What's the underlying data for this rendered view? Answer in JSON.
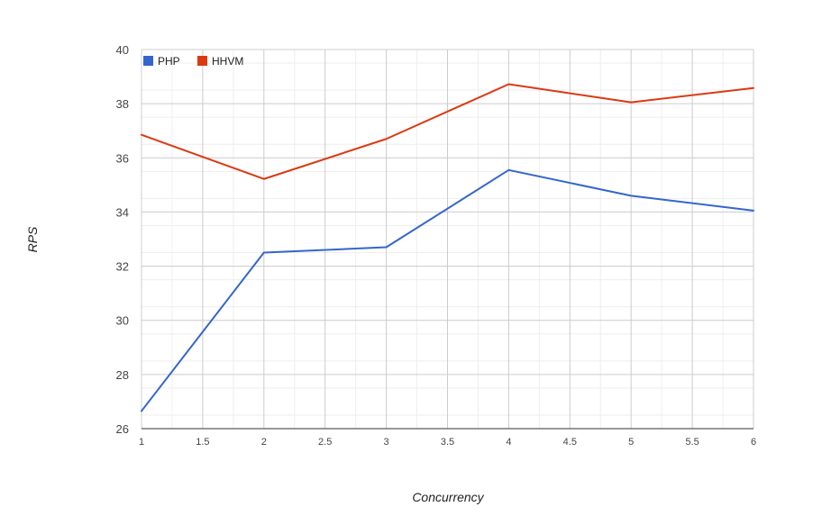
{
  "chart_data": {
    "type": "line",
    "xlabel": "Concurrency",
    "ylabel": "RPS",
    "xlim": [
      1,
      6
    ],
    "ylim": [
      26,
      40
    ],
    "x_ticks": [
      "1",
      "1.5",
      "2",
      "2.5",
      "3",
      "3.5",
      "4",
      "4.5",
      "5",
      "5.5",
      "6"
    ],
    "y_ticks": [
      "26",
      "28",
      "30",
      "32",
      "34",
      "36",
      "38",
      "40"
    ],
    "grid": true,
    "legend_position": "top-left",
    "x": [
      1,
      2,
      3,
      4,
      5,
      6
    ],
    "series": [
      {
        "name": "PHP",
        "color": "#3366cc",
        "values": [
          26.65,
          32.5,
          32.7,
          35.55,
          34.6,
          34.05
        ]
      },
      {
        "name": "HHVM",
        "color": "#dc3912",
        "values": [
          36.85,
          35.22,
          36.7,
          38.72,
          38.05,
          38.58
        ]
      }
    ]
  }
}
